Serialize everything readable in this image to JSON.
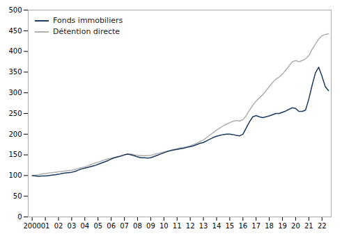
{
  "chart_data": {
    "type": "line",
    "x": [
      2000.0,
      2000.25,
      2000.5,
      2000.75,
      2001.0,
      2001.25,
      2001.5,
      2001.75,
      2002.0,
      2002.25,
      2002.5,
      2002.75,
      2003.0,
      2003.25,
      2003.5,
      2003.75,
      2004.0,
      2004.25,
      2004.5,
      2004.75,
      2005.0,
      2005.25,
      2005.5,
      2005.75,
      2006.0,
      2006.25,
      2006.5,
      2006.75,
      2007.0,
      2007.25,
      2007.5,
      2007.75,
      2008.0,
      2008.25,
      2008.5,
      2008.75,
      2009.0,
      2009.25,
      2009.5,
      2009.75,
      2010.0,
      2010.25,
      2010.5,
      2010.75,
      2011.0,
      2011.25,
      2011.5,
      2011.75,
      2012.0,
      2012.25,
      2012.5,
      2012.75,
      2013.0,
      2013.25,
      2013.5,
      2013.75,
      2014.0,
      2014.25,
      2014.5,
      2014.75,
      2015.0,
      2015.25,
      2015.5,
      2015.75,
      2016.0,
      2016.25,
      2016.5,
      2016.75,
      2017.0,
      2017.25,
      2017.5,
      2017.75,
      2018.0,
      2018.25,
      2018.5,
      2018.75,
      2019.0,
      2019.25,
      2019.5,
      2019.75,
      2020.0,
      2020.25,
      2020.5,
      2020.75,
      2021.0,
      2021.25,
      2021.5,
      2021.75,
      2022.0,
      2022.25,
      2022.5
    ],
    "series": [
      {
        "name": "Fonds immobiliers",
        "color": "#1e3a5f",
        "values": [
          100,
          99,
          98,
          99,
          99,
          100,
          101,
          102,
          103,
          105,
          106,
          107,
          108,
          110,
          113,
          116,
          118,
          120,
          122,
          124,
          127,
          130,
          133,
          136,
          140,
          143,
          145,
          147,
          150,
          152,
          150,
          148,
          145,
          143,
          143,
          142,
          143,
          146,
          149,
          152,
          155,
          158,
          160,
          162,
          163,
          165,
          166,
          168,
          170,
          172,
          175,
          178,
          180,
          184,
          188,
          192,
          195,
          197,
          199,
          200,
          200,
          199,
          197,
          196,
          200,
          215,
          230,
          242,
          245,
          242,
          240,
          242,
          244,
          247,
          250,
          250,
          253,
          256,
          260,
          264,
          262,
          255,
          255,
          258,
          285,
          318,
          348,
          362,
          340,
          315,
          305
        ]
      },
      {
        "name": "Détention directe",
        "color": "#b0b0b0",
        "values": [
          100,
          101,
          102,
          104,
          105,
          106,
          107,
          108,
          109,
          110,
          111,
          112,
          113,
          115,
          117,
          119,
          121,
          124,
          127,
          130,
          132,
          135,
          138,
          140,
          142,
          144,
          146,
          148,
          150,
          152,
          152,
          150,
          149,
          148,
          148,
          148,
          149,
          151,
          153,
          155,
          157,
          159,
          161,
          163,
          165,
          167,
          168,
          170,
          172,
          175,
          178,
          182,
          186,
          192,
          198,
          204,
          210,
          215,
          220,
          224,
          228,
          231,
          233,
          232,
          235,
          245,
          258,
          270,
          280,
          288,
          295,
          305,
          315,
          325,
          333,
          338,
          345,
          355,
          365,
          375,
          378,
          375,
          378,
          382,
          390,
          405,
          418,
          430,
          438,
          441,
          443
        ]
      }
    ],
    "xlim": [
      1999.7,
      2022.7
    ],
    "xticks": [
      2000,
      {
        "value": 2001,
        "label": "01"
      },
      {
        "value": 2002,
        "label": "02"
      },
      {
        "value": 2003,
        "label": "03"
      },
      {
        "value": 2004,
        "label": "04"
      },
      {
        "value": 2005,
        "label": "05"
      },
      {
        "value": 2006,
        "label": "06"
      },
      {
        "value": 2007,
        "label": "07"
      },
      {
        "value": 2008,
        "label": "08"
      },
      {
        "value": 2009,
        "label": "09"
      },
      {
        "value": 2010,
        "label": "10"
      },
      {
        "value": 2011,
        "label": "11"
      },
      {
        "value": 2012,
        "label": "12"
      },
      {
        "value": 2013,
        "label": "13"
      },
      {
        "value": 2014,
        "label": "14"
      },
      {
        "value": 2015,
        "label": "15"
      },
      {
        "value": 2016,
        "label": "16"
      },
      {
        "value": 2017,
        "label": "17"
      },
      {
        "value": 2018,
        "label": "18"
      },
      {
        "value": 2019,
        "label": "19"
      },
      {
        "value": 2020,
        "label": "20"
      },
      {
        "value": 2021,
        "label": "21"
      },
      {
        "value": 2022,
        "label": "22"
      }
    ],
    "ylim": [
      0,
      500
    ],
    "yticks": [
      0,
      50,
      100,
      150,
      200,
      250,
      300,
      350,
      400,
      450,
      500
    ],
    "grid": false,
    "legend": "upper left"
  }
}
